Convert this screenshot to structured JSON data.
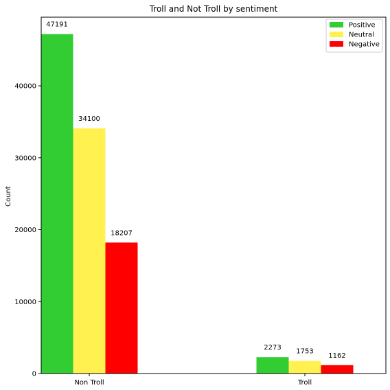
{
  "chart_data": {
    "type": "bar",
    "title": "Troll and Not Troll by sentiment",
    "xlabel": "",
    "ylabel": "Count",
    "categories": [
      "Non Troll",
      "Troll"
    ],
    "series": [
      {
        "name": "Positive",
        "values": [
          47191,
          2273
        ],
        "color": "#32cd32"
      },
      {
        "name": "Neutral",
        "values": [
          34100,
          1753
        ],
        "color": "#fff250"
      },
      {
        "name": "Negative",
        "values": [
          18207,
          1162
        ],
        "color": "#ff0000"
      }
    ],
    "ylim": [
      0,
      49550
    ],
    "yticks": [
      0,
      10000,
      20000,
      30000,
      40000
    ],
    "grid": false,
    "legend_position": "top-right",
    "show_data_labels": true
  }
}
